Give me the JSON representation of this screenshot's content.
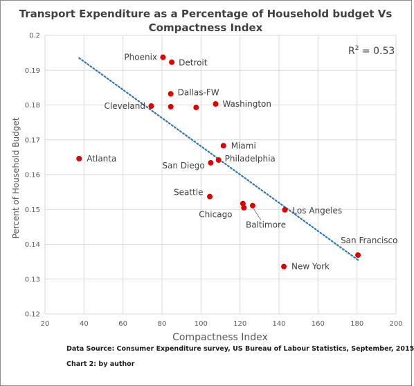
{
  "chart_data": {
    "type": "scatter",
    "title_lines": [
      "Transport Expenditure as a Percentage of  Household  budget Vs",
      "Compactness Index"
    ],
    "xlabel": "Compactness Index",
    "ylabel": "Percent of Household Budget",
    "xlim": [
      20,
      200
    ],
    "ylim": [
      0.12,
      0.2
    ],
    "xticks": [
      "20",
      "40",
      "60",
      "80",
      "100",
      "120",
      "140",
      "160",
      "180",
      "200"
    ],
    "yticks": [
      "0.12",
      "0.13",
      "0.14",
      "0.15",
      "0.16",
      "0.17",
      "0.18",
      "0.19",
      "0.2"
    ],
    "grid": true,
    "point_color": "#e00000",
    "trendline_color": "#2e75b6",
    "trendline_style": "dotted",
    "trendline": {
      "x": [
        37.5,
        180.5
      ],
      "y": [
        0.1935,
        0.1355
      ]
    },
    "r_squared": {
      "label": "R",
      "superscript": "2",
      "value": " = 0.53"
    },
    "points": [
      {
        "label": "Phoenix",
        "x": 80.5,
        "y": 0.1937
      },
      {
        "label": "Detroit",
        "x": 85.0,
        "y": 0.1923
      },
      {
        "label": "Dallas-FW",
        "x": 84.5,
        "y": 0.1832
      },
      {
        "label": "Cleveland",
        "x": 74.5,
        "y": 0.1797
      },
      {
        "label": "",
        "x": 84.5,
        "y": 0.1795
      },
      {
        "label": "",
        "x": 97.5,
        "y": 0.1793
      },
      {
        "label": "Washington",
        "x": 107.5,
        "y": 0.1803
      },
      {
        "label": "Miami",
        "x": 111.5,
        "y": 0.1683
      },
      {
        "label": "Atlanta",
        "x": 37.5,
        "y": 0.1646
      },
      {
        "label": "San Diego",
        "x": 105.0,
        "y": 0.1634
      },
      {
        "label": "Philadelphia",
        "x": 109.0,
        "y": 0.1642
      },
      {
        "label": "Seattle",
        "x": 104.5,
        "y": 0.1537
      },
      {
        "label": "",
        "x": 121.5,
        "y": 0.1517
      },
      {
        "label": "Chicago",
        "x": 122.0,
        "y": 0.1505
      },
      {
        "label": "Baltimore",
        "x": 126.5,
        "y": 0.1511
      },
      {
        "label": "Los Angeles",
        "x": 143.0,
        "y": 0.1499
      },
      {
        "label": "San Francisco",
        "x": 180.5,
        "y": 0.1369
      },
      {
        "label": "New York",
        "x": 142.5,
        "y": 0.1336
      }
    ]
  },
  "footer": {
    "source": "Data Source: Consumer Expenditure survey, US Bureau of Labour Statistics, September, 2015",
    "note": "Chart 2: by author"
  }
}
